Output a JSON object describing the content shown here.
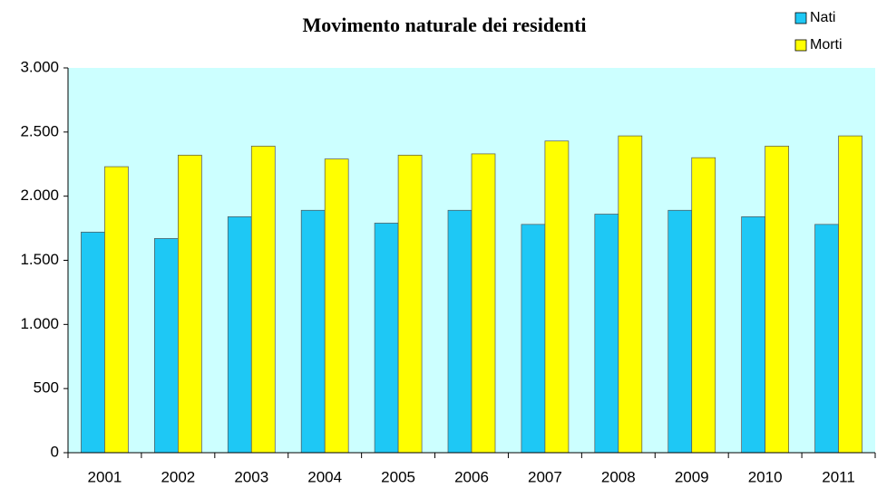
{
  "chart_data": {
    "type": "bar",
    "title": "Movimento naturale dei residenti",
    "categories": [
      "2001",
      "2002",
      "2003",
      "2004",
      "2005",
      "2006",
      "2007",
      "2008",
      "2009",
      "2010",
      "2011"
    ],
    "series": [
      {
        "name": "Nati",
        "color": "#1ec8f5",
        "values": [
          1720,
          1670,
          1840,
          1890,
          1790,
          1890,
          1780,
          1860,
          1890,
          1840,
          1780
        ]
      },
      {
        "name": "Morti",
        "color": "#ffff00",
        "values": [
          2230,
          2320,
          2390,
          2290,
          2320,
          2330,
          2430,
          2470,
          2300,
          2390,
          2470
        ]
      }
    ],
    "ylim": [
      0,
      3000
    ],
    "yticks": [
      0,
      500,
      {
        "value": 1000,
        "label": "1.000"
      },
      {
        "value": 1500,
        "label": "1.500"
      },
      {
        "value": 2000,
        "label": "2.000"
      },
      {
        "value": 2500,
        "label": "2.500"
      },
      {
        "value": 3000,
        "label": "3.000"
      }
    ],
    "grid": false,
    "legend": "top-right",
    "plot_background": "#ccffff"
  }
}
